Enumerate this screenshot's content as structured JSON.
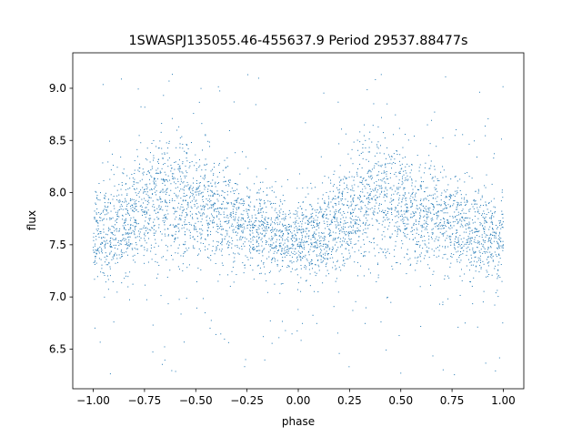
{
  "chart_data": {
    "type": "scatter",
    "title": "1SWASPJ135055.46-455637.9 Period 29537.88477s",
    "xlabel": "phase",
    "ylabel": "flux",
    "xlim": [
      -1.1,
      1.1
    ],
    "ylim": [
      6.12,
      9.34
    ],
    "xticks": [
      -1.0,
      -0.75,
      -0.5,
      -0.25,
      0.0,
      0.25,
      0.5,
      0.75,
      1.0
    ],
    "xtick_labels": [
      "−1.00",
      "−0.75",
      "−0.50",
      "−0.25",
      "0.00",
      "0.25",
      "0.50",
      "0.75",
      "1.00"
    ],
    "yticks": [
      6.5,
      7.0,
      7.5,
      8.0,
      8.5,
      9.0
    ],
    "ytick_labels": [
      "6.5",
      "7.0",
      "7.5",
      "8.0",
      "8.5",
      "9.0"
    ],
    "grid": false,
    "legend": "none",
    "marker_color": "#1f77b4",
    "series": [
      {
        "x_range": [
          -1.0,
          1.0
        ],
        "profile": {
          "phase": [
            -1.0,
            -0.9,
            -0.8,
            -0.7,
            -0.6,
            -0.5,
            -0.4,
            -0.3,
            -0.2,
            -0.1,
            0.0,
            0.1,
            0.2,
            0.3,
            0.4,
            0.5,
            0.6,
            0.7,
            0.8,
            0.9,
            1.0
          ],
          "flux_center": [
            7.58,
            7.65,
            7.78,
            7.92,
            7.95,
            7.88,
            7.8,
            7.72,
            7.65,
            7.6,
            7.55,
            7.62,
            7.72,
            7.88,
            7.98,
            7.9,
            7.8,
            7.72,
            7.65,
            7.6,
            7.58
          ],
          "flux_spread": [
            0.22,
            0.24,
            0.27,
            0.3,
            0.3,
            0.28,
            0.25,
            0.22,
            0.2,
            0.2,
            0.2,
            0.22,
            0.25,
            0.3,
            0.32,
            0.28,
            0.25,
            0.23,
            0.22,
            0.22,
            0.22
          ]
        },
        "outlier_range": [
          6.25,
          9.15
        ]
      }
    ]
  }
}
